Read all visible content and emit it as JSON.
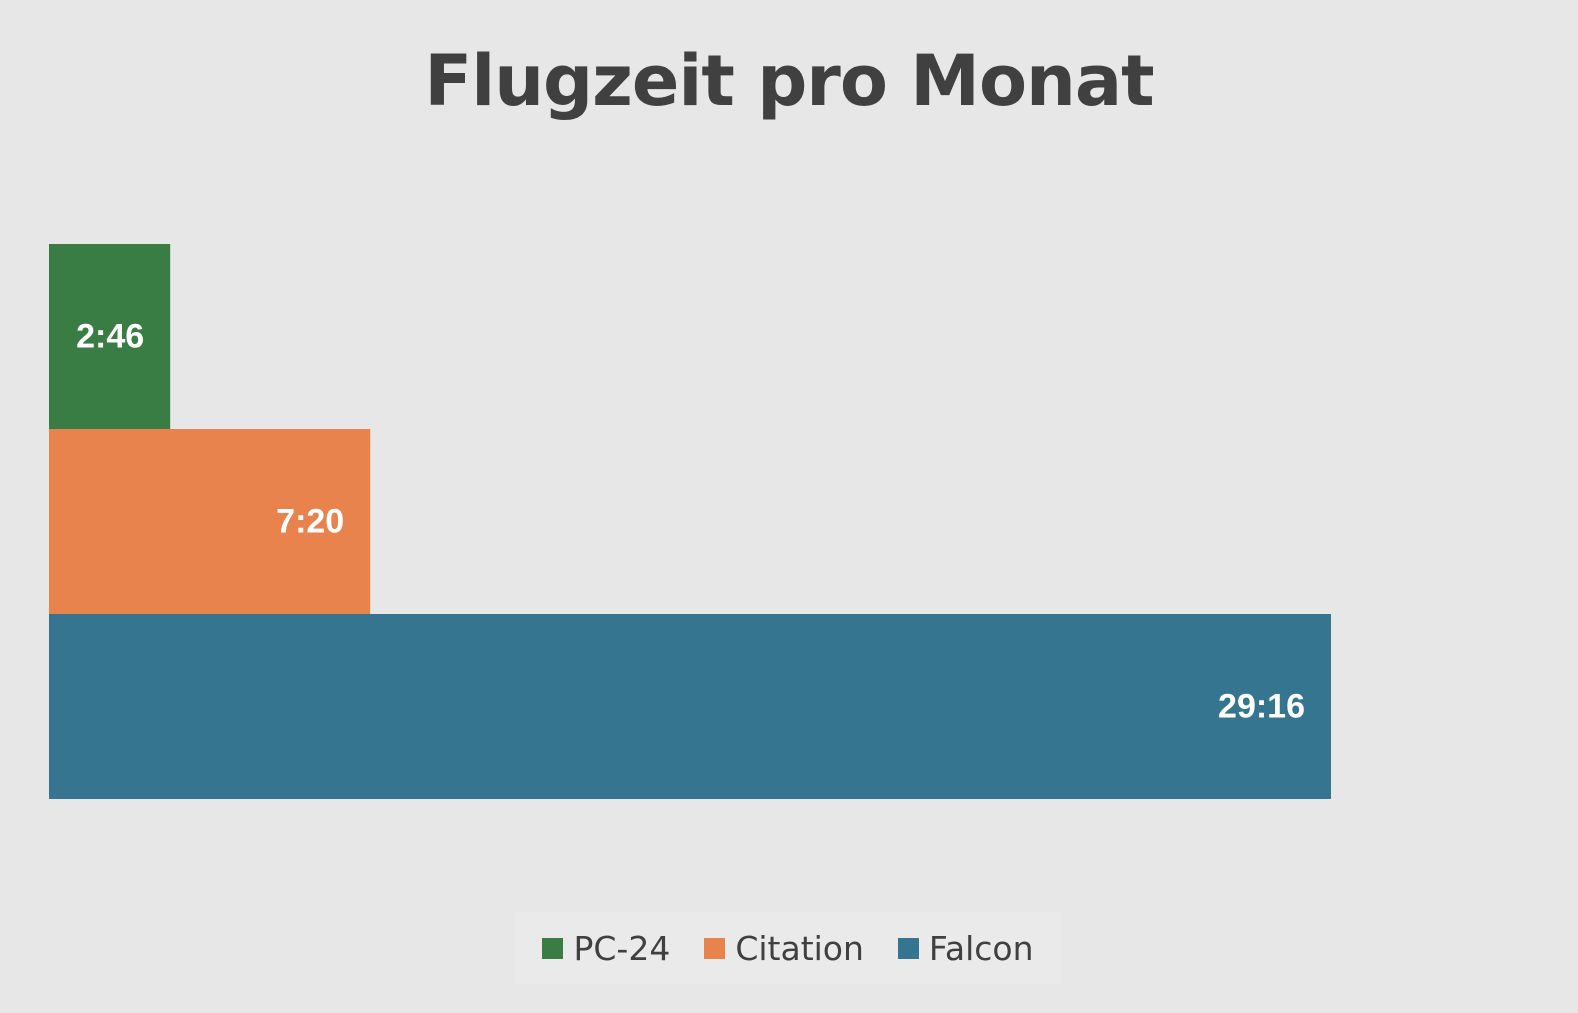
{
  "chart_data": {
    "type": "bar",
    "orientation": "horizontal",
    "stacked": false,
    "title": "Flugzeit pro Monat",
    "categories": [
      "PC-24",
      "Citation",
      "Falcon"
    ],
    "values_hours": [
      2.7667,
      7.3333,
      29.2667
    ],
    "data_labels": [
      "2:46",
      "7:20",
      "29:16"
    ],
    "colors": [
      "#3a7d44",
      "#e8834e",
      "#35758f"
    ],
    "xlim": [
      0,
      29.2667
    ],
    "grid": false,
    "x_axis_visible": false,
    "y_axis_visible": false,
    "legend_position": "bottom",
    "legend": [
      {
        "name": "PC-24",
        "color": "#3a7d44"
      },
      {
        "name": "Citation",
        "color": "#e8834e"
      },
      {
        "name": "Falcon",
        "color": "#35758f"
      }
    ]
  }
}
